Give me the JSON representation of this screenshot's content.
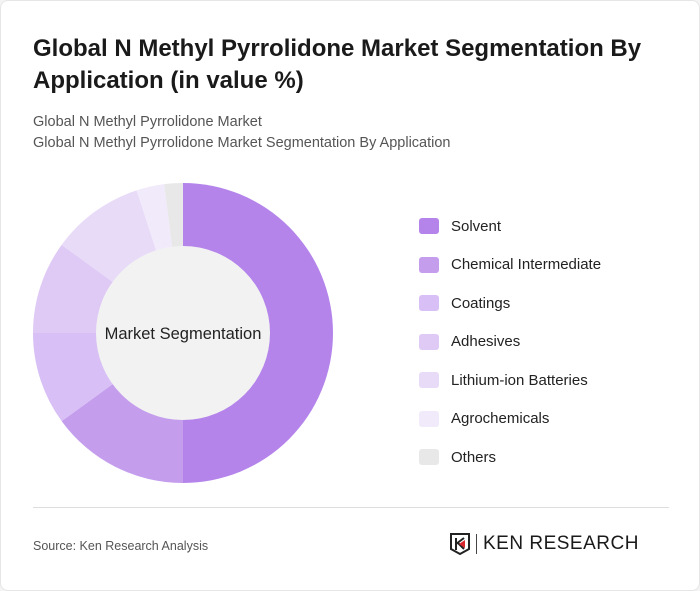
{
  "title": "Global N Methyl Pyrrolidone Market Segmentation By Application (in value %)",
  "subtitle1": "Global N Methyl Pyrrolidone Market",
  "subtitle2": "Global N Methyl Pyrrolidone Market Segmentation By Application",
  "source": "Source: Ken Research Analysis",
  "logo_text": "KEN RESEARCH",
  "chart_data": {
    "type": "pie",
    "donut": true,
    "center_label": "Market Segmentation",
    "legend_position": "right",
    "categories": [
      "Solvent",
      "Chemical Intermediate",
      "Coatings",
      "Adhesives",
      "Lithium-ion Batteries",
      "Agrochemicals",
      "Others"
    ],
    "values": [
      50,
      15,
      10,
      10,
      10,
      3,
      2
    ],
    "colors": [
      "#b484eb",
      "#c49ded",
      "#d8bff5",
      "#dfcaf5",
      "#e8dbf8",
      "#f1eafb",
      "#e8e8e8"
    ]
  }
}
